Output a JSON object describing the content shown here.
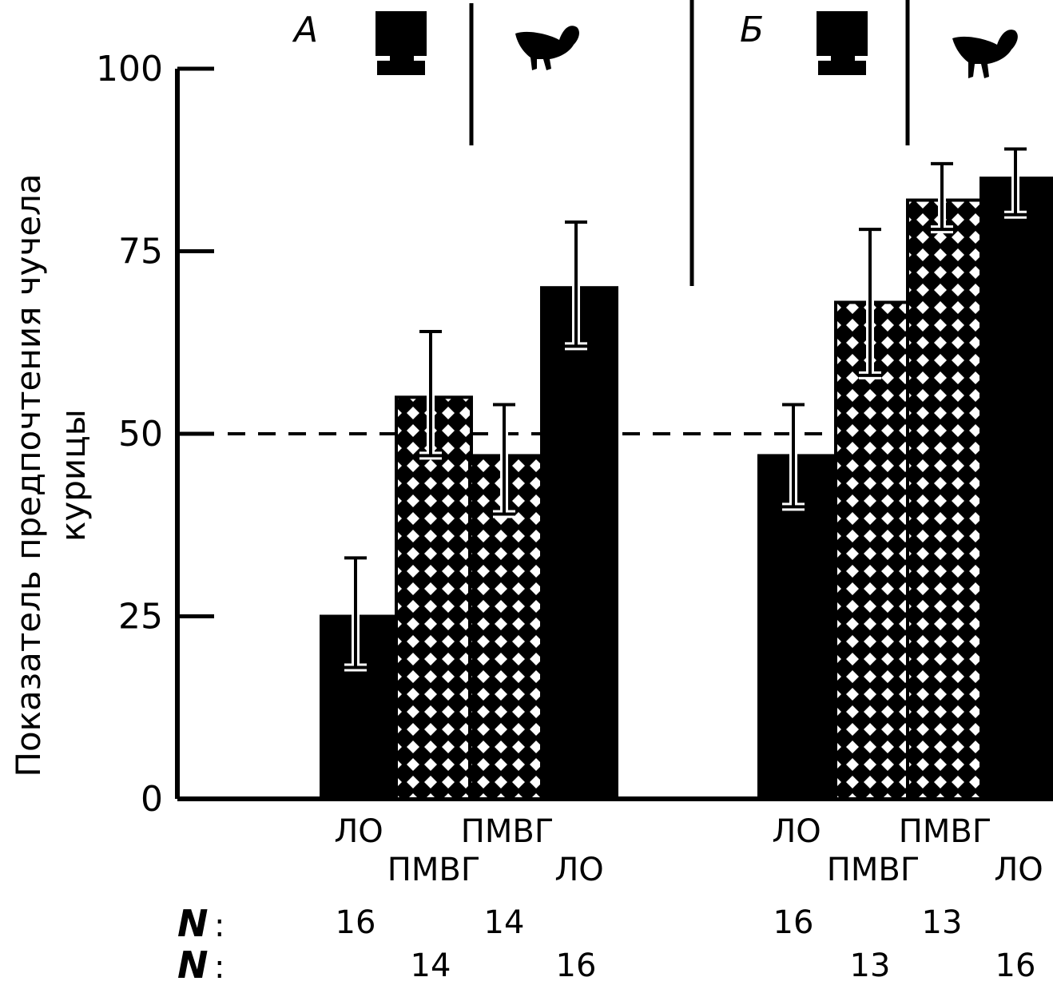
{
  "chart_data": {
    "type": "bar",
    "ylabel_lines": [
      "Показатель предпочтения чучела",
      "курицы"
    ],
    "ylim": [
      0,
      100
    ],
    "yticks": [
      0,
      25,
      50,
      75,
      100
    ],
    "reference_line": 50,
    "n_label": "N",
    "n_separator": ":",
    "panels": [
      {
        "label": "А",
        "bars": [
          {
            "category": "ЛО",
            "value": 25,
            "error_upper": 8,
            "error_lower": 7,
            "pattern": "solid",
            "n": "16",
            "label_row": 1,
            "n_row": 1
          },
          {
            "category": "ПМВГ",
            "value": 55,
            "error_upper": 9,
            "error_lower": 8,
            "pattern": "crosshatch",
            "n": "14",
            "label_row": 2,
            "n_row": 2
          },
          {
            "category": "ПМВГ",
            "value": 47,
            "error_upper": 7,
            "error_lower": 8,
            "pattern": "crosshatch",
            "n": "14",
            "label_row": 1,
            "n_row": 1
          },
          {
            "category": "ЛО",
            "value": 70,
            "error_upper": 9,
            "error_lower": 8,
            "pattern": "solid",
            "n": "16",
            "label_row": 2,
            "n_row": 2
          }
        ]
      },
      {
        "label": "Б",
        "bars": [
          {
            "category": "ЛО",
            "value": 47,
            "error_upper": 7,
            "error_lower": 7,
            "pattern": "solid",
            "n": "16",
            "label_row": 1,
            "n_row": 1
          },
          {
            "category": "ПМВГ",
            "value": 68,
            "error_upper": 10,
            "error_lower": 10,
            "pattern": "crosshatch",
            "n": "13",
            "label_row": 2,
            "n_row": 2
          },
          {
            "category": "ПМВГ",
            "value": 82,
            "error_upper": 5,
            "error_lower": 4,
            "pattern": "crosshatch",
            "n": "13",
            "label_row": 1,
            "n_row": 1
          },
          {
            "category": "ЛО",
            "value": 85,
            "error_upper": 4,
            "error_lower": 5,
            "pattern": "solid",
            "n": "16",
            "label_row": 2,
            "n_row": 2
          }
        ]
      }
    ],
    "icons": [
      "stimulus-box-icon",
      "chicken-icon"
    ],
    "colors": {
      "ink": "#000000",
      "background": "#ffffff"
    }
  }
}
